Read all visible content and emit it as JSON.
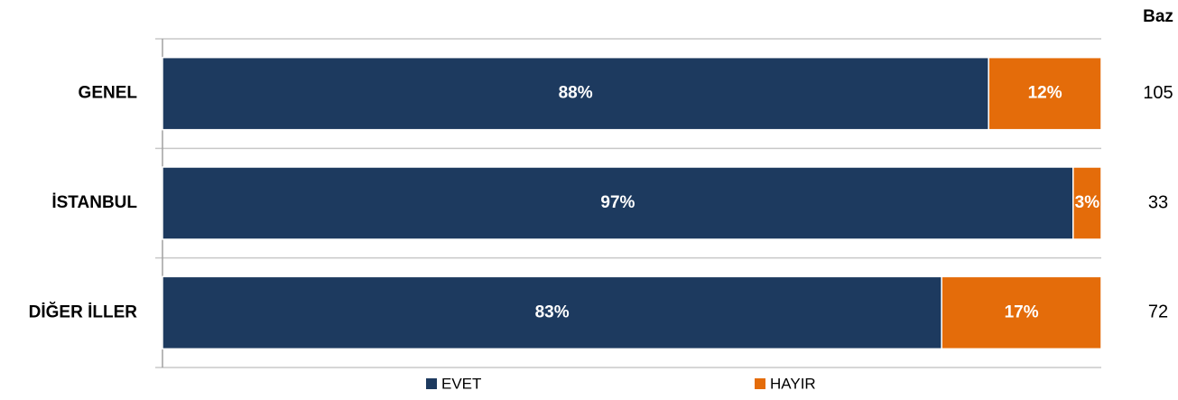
{
  "chart_data": {
    "type": "stacked_barh",
    "categories": [
      "GENEL",
      "İSTANBUL",
      "DİĞER İLLER"
    ],
    "series": [
      {
        "name": "EVET",
        "color": "#1d3a5f",
        "values": [
          88,
          97,
          83
        ],
        "value_labels": [
          "88%",
          "97%",
          "83%"
        ]
      },
      {
        "name": "HAYIR",
        "color": "#e46c0a",
        "values": [
          12,
          3,
          17
        ],
        "value_labels": [
          "12%",
          "3%",
          "17%"
        ]
      }
    ],
    "xlim": [
      0,
      100
    ],
    "baz": {
      "label": "Baz",
      "values": [
        105,
        33,
        72
      ]
    }
  }
}
